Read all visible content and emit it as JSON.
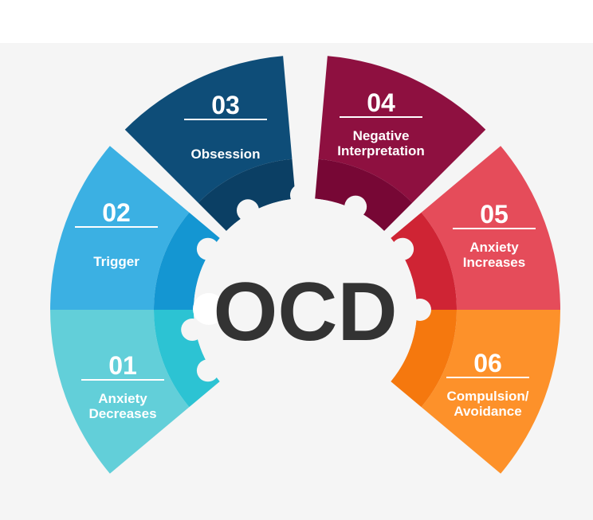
{
  "center": {
    "title": "OCD",
    "color": "#333333"
  },
  "steps": [
    {
      "number": "01",
      "label_lines": [
        "Anxiety",
        "Decreases"
      ],
      "color": "#62cfd9",
      "inner_color": "#2cc3d3"
    },
    {
      "number": "02",
      "label_lines": [
        "Trigger"
      ],
      "color": "#3bb0e3",
      "inner_color": "#1496d2"
    },
    {
      "number": "03",
      "label_lines": [
        "Obsession"
      ],
      "color": "#0e4d78",
      "inner_color": "#0b3f64"
    },
    {
      "number": "04",
      "label_lines": [
        "Negative",
        "Interpretation"
      ],
      "color": "#8e1040",
      "inner_color": "#770735"
    },
    {
      "number": "05",
      "label_lines": [
        "Anxiety",
        "Increases"
      ],
      "color": "#e54c5a",
      "inner_color": "#cf2434"
    },
    {
      "number": "06",
      "label_lines": [
        "Compulsion/",
        "Avoidance"
      ],
      "color": "#fd912a",
      "inner_color": "#f5780e"
    }
  ]
}
